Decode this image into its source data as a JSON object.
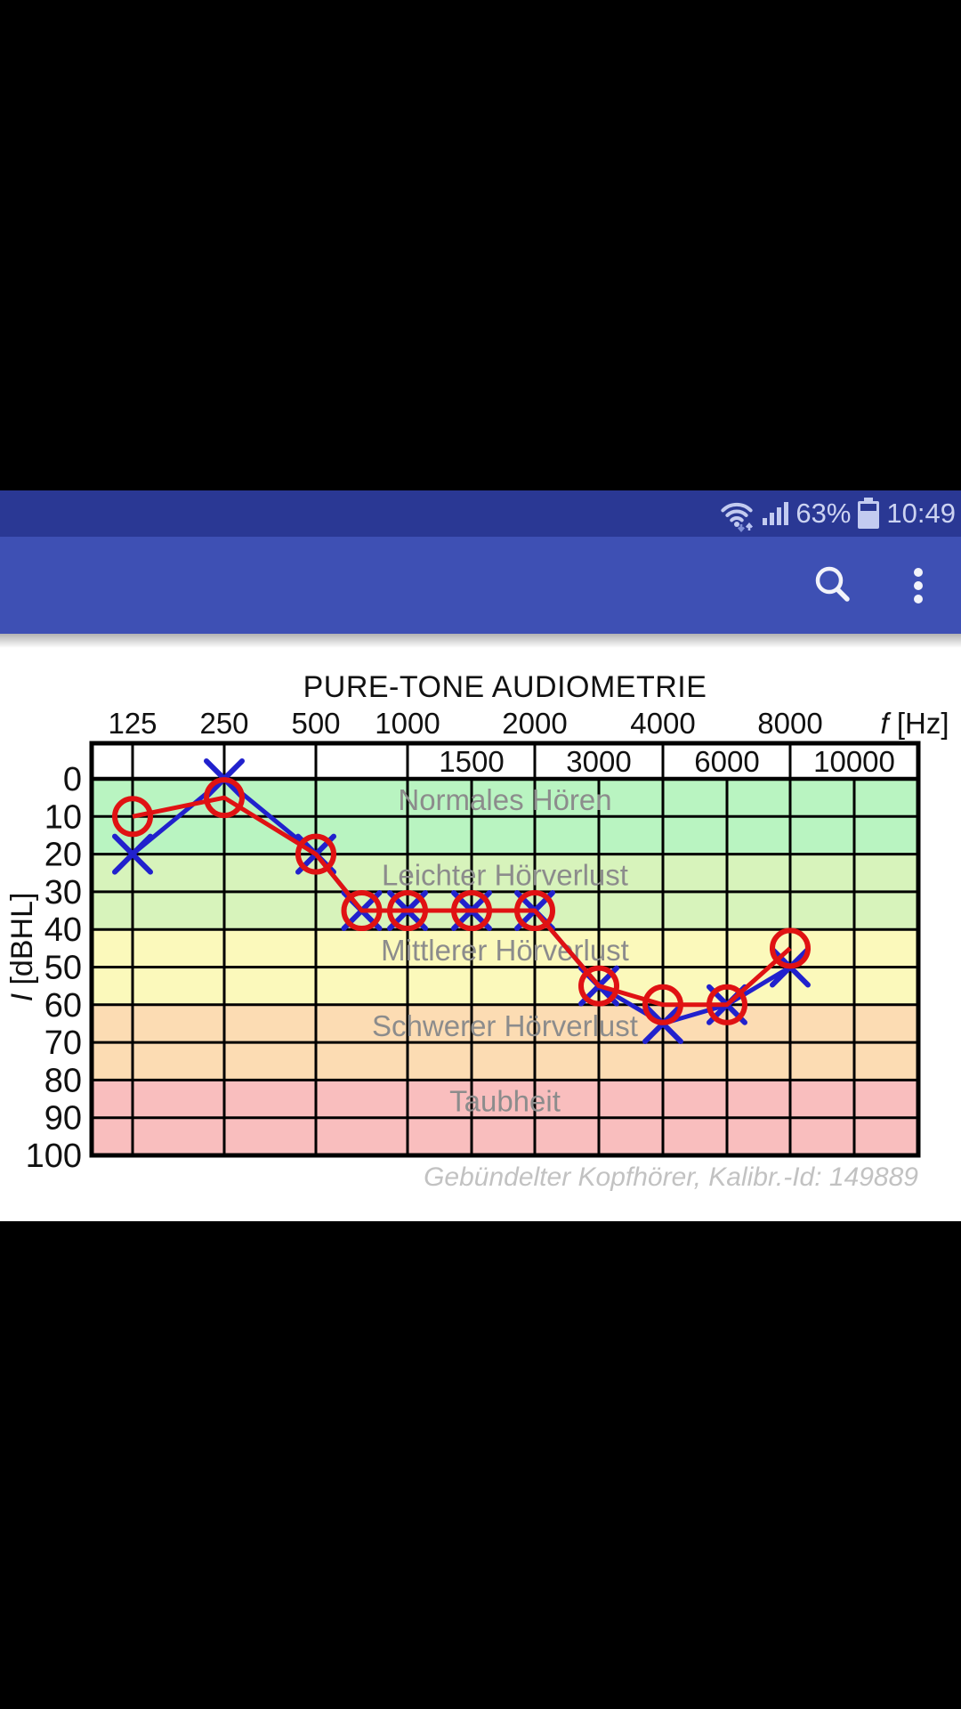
{
  "status_bar": {
    "battery_percent": "63%",
    "time": "10:49"
  },
  "app_bar": {
    "search_icon": "magnifier",
    "overflow_icon": "three-vertical-dots"
  },
  "chart_data": {
    "type": "line",
    "title": "PURE-TONE AUDIOMETRIE",
    "caption": "Gebündelter Kopfhörer, Kalibr.-Id: 149889",
    "x_axis_label_symbol": "f",
    "x_axis_label_unit": " [Hz]",
    "y_axis_label_symbol": "I",
    "y_axis_label_unit": " [dBHL]",
    "x_ticks_row1": [
      "125",
      "250",
      "500",
      "1000",
      "2000",
      "4000",
      "8000"
    ],
    "x_ticks_row1_freq": [
      125,
      250,
      500,
      1000,
      2000,
      4000,
      8000
    ],
    "x_ticks_row2": [
      "1500",
      "3000",
      "6000",
      "10000"
    ],
    "x_ticks_row2_freq": [
      1500,
      3000,
      6000,
      10000
    ],
    "y_ticks": [
      0,
      10,
      20,
      30,
      40,
      50,
      60,
      70,
      80,
      90,
      100
    ],
    "ylim": [
      0,
      100
    ],
    "grid": true,
    "legend": "none",
    "frequencies": [
      125,
      250,
      500,
      750,
      1000,
      1500,
      2000,
      3000,
      4000,
      6000,
      8000
    ],
    "series": [
      {
        "name": "left-ear-blue-x",
        "marker": "x",
        "color": "#2121cd",
        "values": [
          20,
          0,
          20,
          35,
          35,
          35,
          35,
          55,
          65,
          60,
          50
        ]
      },
      {
        "name": "right-ear-red-circle",
        "marker": "circle",
        "color": "#e01213",
        "values": [
          10,
          5,
          20,
          35,
          35,
          35,
          35,
          55,
          60,
          60,
          45
        ]
      }
    ],
    "zones": [
      {
        "label": "Normales Hören",
        "from": 0,
        "to": 20,
        "color": "#b9f4c1"
      },
      {
        "label": "Leichter Hörverlust",
        "from": 20,
        "to": 40,
        "color": "#d7f3bb"
      },
      {
        "label": "Mittlerer Hörverlust",
        "from": 40,
        "to": 60,
        "color": "#fbf9bb"
      },
      {
        "label": "Schwerer Hörverlust",
        "from": 60,
        "to": 80,
        "color": "#fcdcb3"
      },
      {
        "label": "Taubheit",
        "from": 80,
        "to": 100,
        "color": "#f9bebe"
      }
    ]
  }
}
